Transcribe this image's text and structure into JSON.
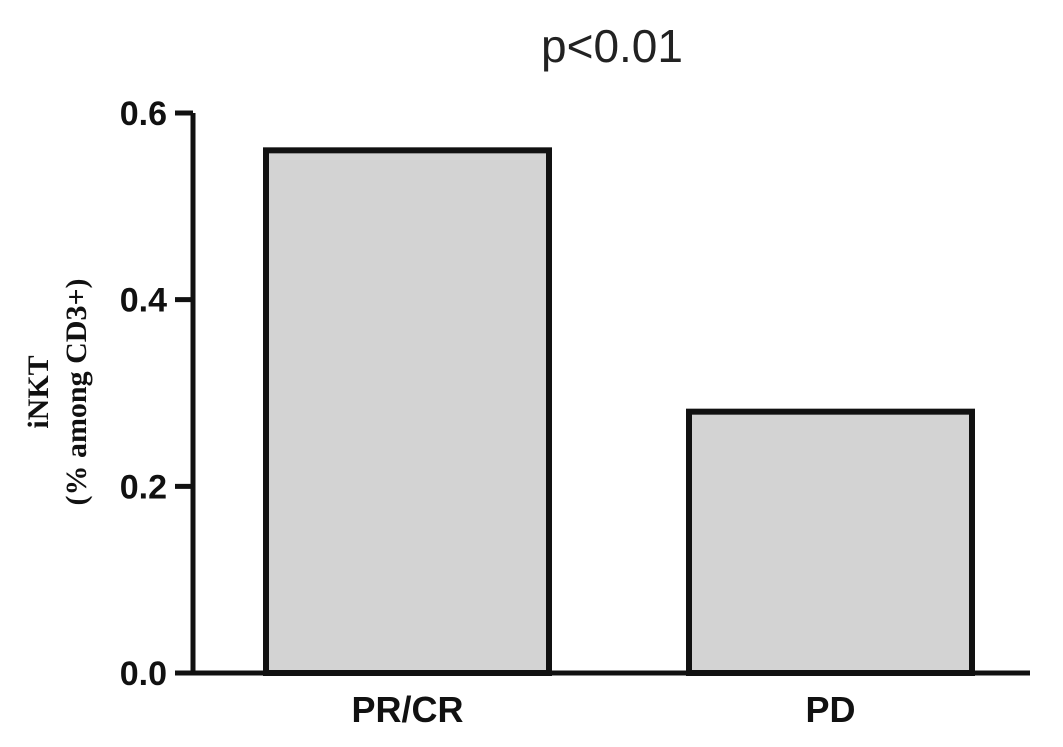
{
  "chart_data": {
    "type": "bar",
    "title": "p<0.01",
    "ylabel_line1": "iNKT",
    "ylabel_line2": "(% among CD3+)",
    "xlabel": "",
    "categories": [
      "PR/CR",
      "PD"
    ],
    "values": [
      0.56,
      0.28
    ],
    "ylim": [
      0,
      0.6
    ],
    "yticks": [
      {
        "value": 0.0,
        "label": "0.0"
      },
      {
        "value": 0.2,
        "label": "0.2"
      },
      {
        "value": 0.4,
        "label": "0.4"
      },
      {
        "value": 0.6,
        "label": "0.6"
      }
    ],
    "bar_fill": "#d3d3d3",
    "bar_stroke": "#111111",
    "grid": false,
    "legend": "none"
  }
}
